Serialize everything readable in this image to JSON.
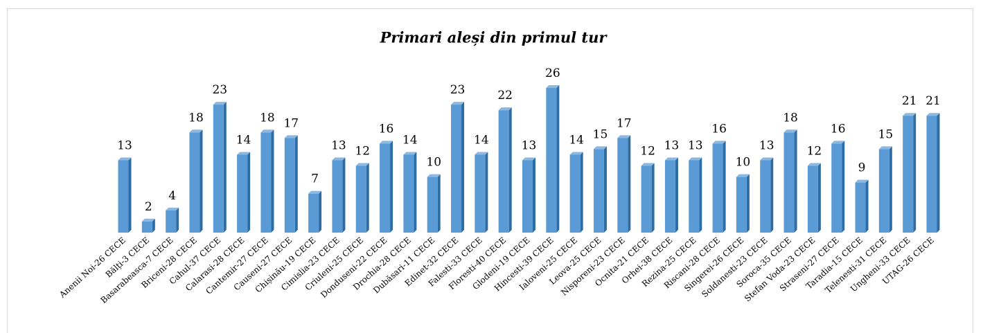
{
  "chart_data": {
    "type": "bar",
    "title": "Primari aleși din primul tur",
    "categories": [
      "Anenii Noi-26 CECE",
      "Bălți-3 CECE",
      "Basarabeasca-7 CECE",
      "Briceni-28 CECE",
      "Cahul-37 CECE",
      "Calarasi-28 CECE",
      "Cantemir-27 CECE",
      "Causeni-27 CECE",
      "Chișinău-19 CECE",
      "Cimislia-23 CECE",
      "Criuleni-25 CECE",
      "Donduseni-22 CECE",
      "Drochia-28 CECE",
      "Dubăsari-11 CECE",
      "Edinet-32 CECE",
      "Falesti-33 CECE",
      "Floresti-40 CECE",
      "Glodeni-19 CECE",
      "Hincesti-39 CECE",
      "Ialoveni-25 CECE",
      "Leova-25 CECE",
      "Nisporeni-23 CECE",
      "Ocnita-21 CECE",
      "Orhei-38 CECE",
      "Rezina-25 CECE",
      "Riscani-28 CECE",
      "Singerei-26 CECE",
      "Soldanesti-23 CECE",
      "Soroca-35 CECE",
      "Stefan Voda-23 CECE",
      "Straseni-27 CECE",
      "Taradia-15 CECE",
      "Telenesti-31 CECE",
      "Ungheni-33 CECE",
      "UTAG-26 CECE"
    ],
    "values": [
      13,
      2,
      4,
      18,
      23,
      14,
      18,
      17,
      7,
      13,
      12,
      16,
      14,
      10,
      23,
      14,
      22,
      13,
      26,
      14,
      15,
      17,
      12,
      13,
      13,
      16,
      10,
      13,
      18,
      12,
      16,
      9,
      15,
      21,
      21
    ],
    "color": "#5b9bd5"
  }
}
